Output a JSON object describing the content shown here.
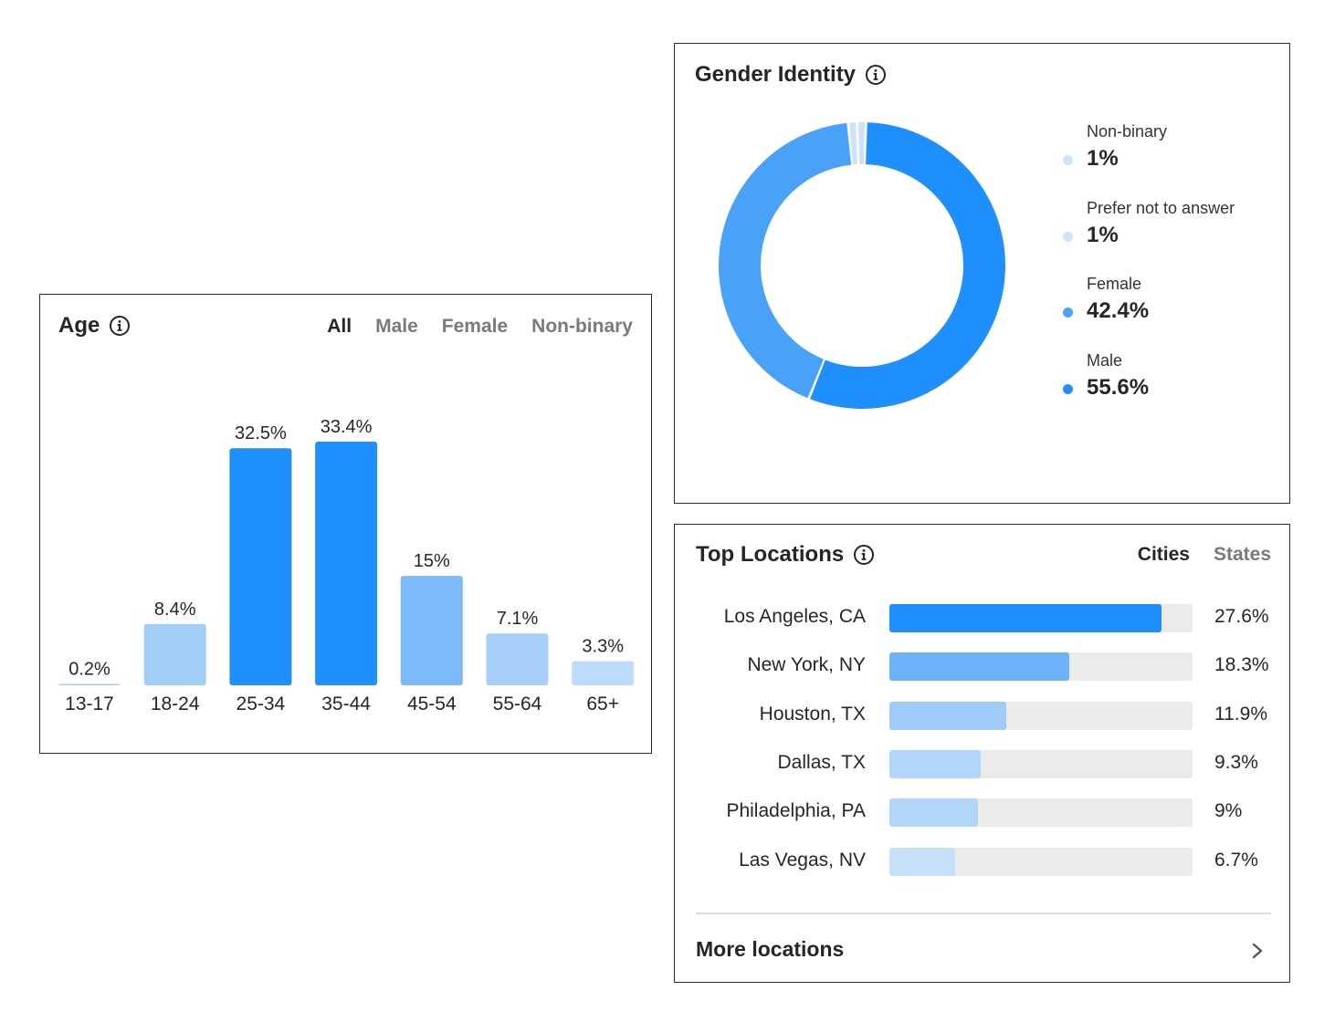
{
  "age": {
    "title": "Age",
    "tabs": [
      "All",
      "Male",
      "Female",
      "Non-binary"
    ],
    "active_tab": "All"
  },
  "gender": {
    "title": "Gender Identity"
  },
  "locations": {
    "title": "Top Locations",
    "tabs": [
      "Cities",
      "States"
    ],
    "active_tab": "Cities",
    "more_label": "More locations"
  },
  "chart_data": [
    {
      "type": "bar",
      "title": "Age",
      "categories": [
        "13-17",
        "18-24",
        "25-34",
        "35-44",
        "45-54",
        "55-64",
        "65+"
      ],
      "values": [
        0.2,
        8.4,
        32.5,
        33.4,
        15,
        7.1,
        3.3
      ],
      "value_labels": [
        "0.2%",
        "8.4%",
        "32.5%",
        "33.4%",
        "15%",
        "7.1%",
        "3.3%"
      ],
      "colors": [
        "#a9cff8",
        "#a2cdf7",
        "#1e8ffc",
        "#1e8ffc",
        "#7cbaf9",
        "#a6d0f8",
        "#bcdcfb"
      ],
      "grid": false
    },
    {
      "type": "pie",
      "title": "Gender Identity",
      "labels": [
        "Non-binary",
        "Prefer not to answer",
        "Female",
        "Male"
      ],
      "values": [
        1,
        1,
        42.4,
        55.6
      ],
      "value_labels": [
        "1%",
        "1%",
        "42.4%",
        "55.6%"
      ],
      "colors": [
        "#cde3fa",
        "#cde3fa",
        "#4aa2f8",
        "#1e8ffc"
      ],
      "legend": "right"
    },
    {
      "type": "bar",
      "orientation": "horizontal",
      "title": "Top Locations",
      "categories": [
        "Los Angeles, CA",
        "New York, NY",
        "Houston, TX",
        "Dallas, TX",
        "Philadelphia, PA",
        "Las Vegas, NV"
      ],
      "values": [
        27.6,
        18.3,
        11.9,
        9.3,
        9,
        6.7
      ],
      "value_labels": [
        "27.6%",
        "18.3%",
        "11.9%",
        "9.3%",
        "9%",
        "6.7%"
      ],
      "xlim": [
        0,
        30.8
      ],
      "colors": [
        "#1e8ffc",
        "#6cb3fa",
        "#9ecbf8",
        "#b2d6f9",
        "#b2d6f9",
        "#c8e1fa"
      ],
      "track_color": "#ebebeb"
    }
  ]
}
